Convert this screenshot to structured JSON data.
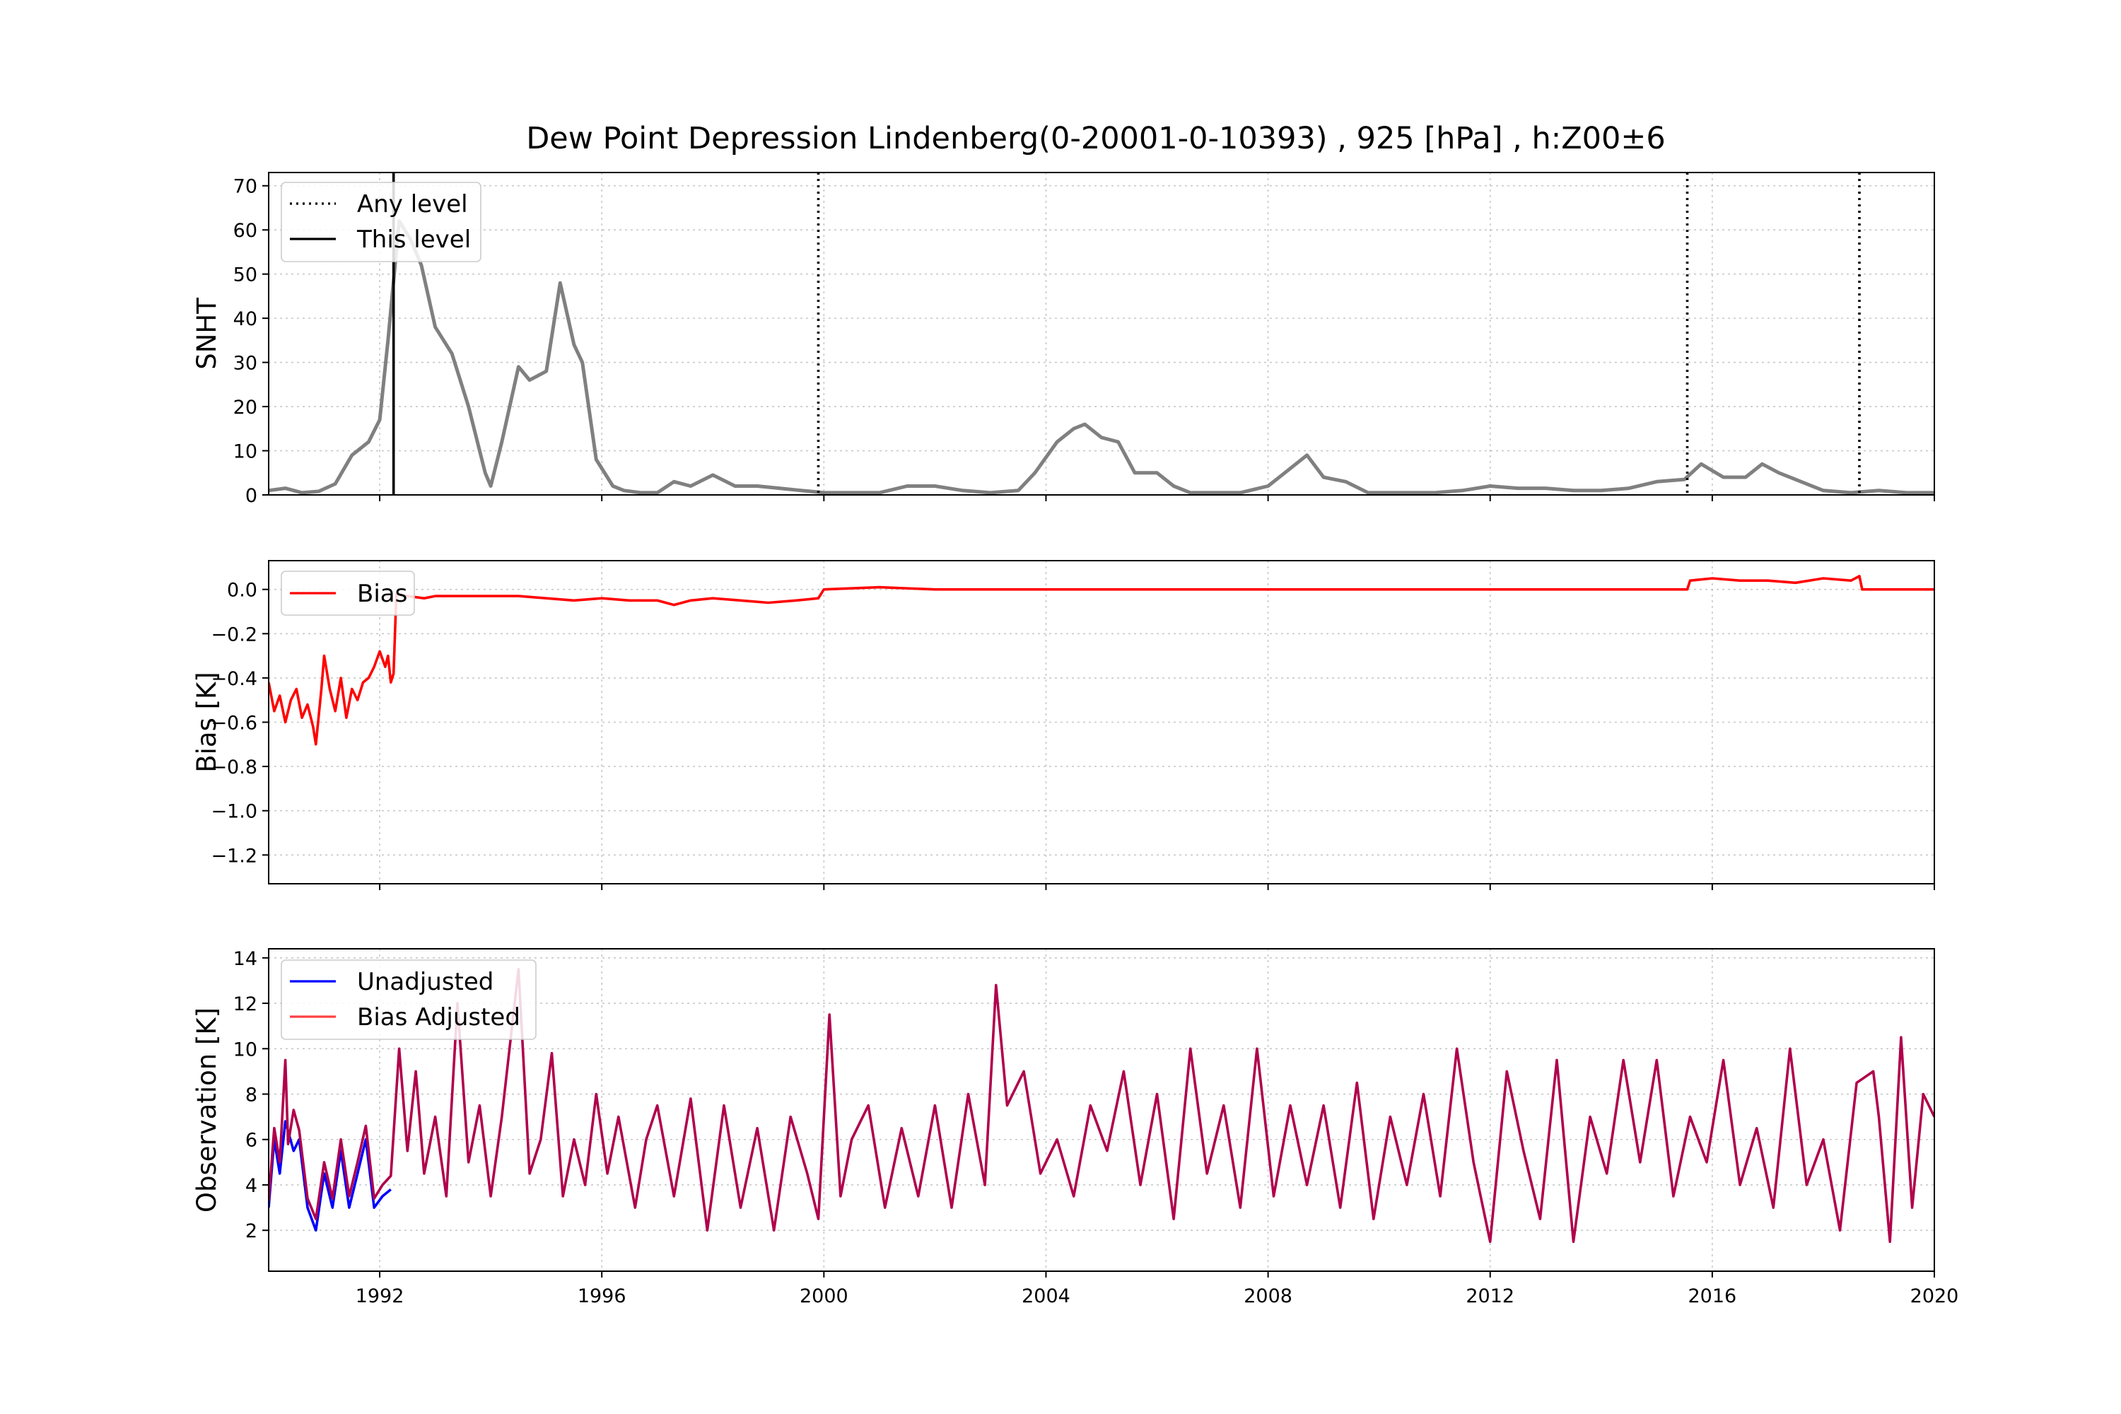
{
  "chart_data": [
    {
      "panel": "snht",
      "type": "line",
      "title": "Dew Point Depression Lindenberg(0-20001-0-10393) , 925 [hPa] , h:Z00±6",
      "ylabel": "SNHT",
      "xlim": [
        1990.0,
        2020.0
      ],
      "ylim": [
        0,
        73
      ],
      "yticks": [
        0,
        10,
        20,
        30,
        40,
        50,
        60,
        70
      ],
      "grid": true,
      "legend_position": "top-left",
      "legend": [
        "Any level",
        "This level"
      ],
      "series": [
        {
          "color": "#808080",
          "x": [
            1990.0,
            1990.3,
            1990.6,
            1990.9,
            1991.2,
            1991.5,
            1991.8,
            1992.0,
            1992.15,
            1992.35,
            1992.55,
            1992.75,
            1993.0,
            1993.3,
            1993.6,
            1993.9,
            1994.0,
            1994.2,
            1994.5,
            1994.7,
            1995.0,
            1995.25,
            1995.5,
            1995.65,
            1995.9,
            1996.2,
            1996.4,
            1996.7,
            1997.0,
            1997.3,
            1997.6,
            1998.0,
            1998.4,
            1998.8,
            1999.2,
            1999.6,
            2000.0,
            2000.5,
            2001.0,
            2001.5,
            2002.0,
            2002.5,
            2003.0,
            2003.5,
            2003.8,
            2004.2,
            2004.5,
            2004.7,
            2005.0,
            2005.3,
            2005.6,
            2006.0,
            2006.3,
            2006.6,
            2007.0,
            2007.5,
            2008.0,
            2008.3,
            2008.7,
            2009.0,
            2009.4,
            2009.8,
            2010.2,
            2010.6,
            2011.0,
            2011.5,
            2012.0,
            2012.5,
            2013.0,
            2013.5,
            2014.0,
            2014.5,
            2015.0,
            2015.5,
            2015.8,
            2016.2,
            2016.6,
            2016.9,
            2017.2,
            2017.6,
            2018.0,
            2018.5,
            2019.0,
            2019.5,
            2020.0
          ],
          "y": [
            1.0,
            1.5,
            0.5,
            0.8,
            2.5,
            9.0,
            12.0,
            17.0,
            35.0,
            62.0,
            58.0,
            52.0,
            38.0,
            32.0,
            20.0,
            5.0,
            2.0,
            12.0,
            29.0,
            26.0,
            28.0,
            48.0,
            34.0,
            30.0,
            8.0,
            2.0,
            1.0,
            0.5,
            0.5,
            3.0,
            2.0,
            4.5,
            2.0,
            2.0,
            1.5,
            1.0,
            0.5,
            0.5,
            0.5,
            2.0,
            2.0,
            1.0,
            0.5,
            1.0,
            5.0,
            12.0,
            15.0,
            16.0,
            13.0,
            12.0,
            5.0,
            5.0,
            2.0,
            0.5,
            0.5,
            0.5,
            2.0,
            5.0,
            9.0,
            4.0,
            3.0,
            0.5,
            0.5,
            0.5,
            0.5,
            1.0,
            2.0,
            1.5,
            1.5,
            1.0,
            1.0,
            1.5,
            3.0,
            3.5,
            7.0,
            4.0,
            4.0,
            7.0,
            5.0,
            3.0,
            1.0,
            0.5,
            1.0,
            0.5,
            0.5
          ]
        }
      ],
      "vlines_any_level": [
        1999.9,
        2015.55,
        2018.65
      ],
      "vlines_this_level": [
        1992.25
      ]
    },
    {
      "panel": "bias",
      "type": "line",
      "ylabel": "Bias [K]",
      "xlim": [
        1990.0,
        2020.0
      ],
      "ylim": [
        -1.33,
        0.13
      ],
      "yticks": [
        0.0,
        -0.2,
        -0.4,
        -0.6,
        -0.8,
        -1.0,
        -1.2
      ],
      "ytick_labels": [
        "0.0",
        "−0.2",
        "−0.4",
        "−0.6",
        "−0.8",
        "−1.0",
        "−1.2"
      ],
      "grid": true,
      "legend_position": "top-left",
      "series": [
        {
          "name": "Bias",
          "color": "#ff0000",
          "x": [
            1990.0,
            1990.1,
            1990.2,
            1990.3,
            1990.4,
            1990.5,
            1990.6,
            1990.7,
            1990.8,
            1990.85,
            1990.95,
            1991.0,
            1991.1,
            1991.2,
            1991.3,
            1991.4,
            1991.5,
            1991.6,
            1991.7,
            1991.8,
            1991.9,
            1992.0,
            1992.1,
            1992.15,
            1992.2,
            1992.25,
            1992.3,
            1992.5,
            1992.8,
            1993.0,
            1993.5,
            1994.0,
            1994.5,
            1995.0,
            1995.5,
            1996.0,
            1996.5,
            1997.0,
            1997.3,
            1997.6,
            1998.0,
            1998.5,
            1999.0,
            1999.5,
            1999.9,
            2000.0,
            2001.0,
            2002.0,
            2003.0,
            2004.0,
            2005.0,
            2006.0,
            2007.0,
            2008.0,
            2009.0,
            2010.0,
            2011.0,
            2012.0,
            2013.0,
            2014.0,
            2015.0,
            2015.55,
            2015.6,
            2016.0,
            2016.5,
            2017.0,
            2017.5,
            2018.0,
            2018.5,
            2018.65,
            2018.7,
            2019.0,
            2019.5,
            2020.0
          ],
          "y": [
            -0.42,
            -0.55,
            -0.48,
            -0.6,
            -0.5,
            -0.45,
            -0.58,
            -0.52,
            -0.62,
            -0.7,
            -0.45,
            -0.3,
            -0.45,
            -0.55,
            -0.4,
            -0.58,
            -0.45,
            -0.5,
            -0.42,
            -0.4,
            -0.35,
            -0.28,
            -0.35,
            -0.3,
            -0.42,
            -0.38,
            -0.02,
            -0.03,
            -0.04,
            -0.03,
            -0.03,
            -0.03,
            -0.03,
            -0.04,
            -0.05,
            -0.04,
            -0.05,
            -0.05,
            -0.07,
            -0.05,
            -0.04,
            -0.05,
            -0.06,
            -0.05,
            -0.04,
            0.0,
            0.01,
            0.0,
            0.0,
            0.0,
            0.0,
            0.0,
            0.0,
            0.0,
            0.0,
            0.0,
            0.0,
            0.0,
            0.0,
            0.0,
            0.0,
            0.0,
            0.04,
            0.05,
            0.04,
            0.04,
            0.03,
            0.05,
            0.04,
            0.06,
            0.0,
            0.0,
            0.0,
            0.0
          ]
        }
      ]
    },
    {
      "panel": "observation",
      "type": "line",
      "ylabel": "Observation [K]",
      "xlim": [
        1990.0,
        2020.0
      ],
      "ylim": [
        0.2,
        14.4
      ],
      "yticks": [
        2,
        4,
        6,
        8,
        10,
        12,
        14
      ],
      "xticks": [
        1992,
        1996,
        2000,
        2004,
        2008,
        2012,
        2016,
        2020
      ],
      "grid": true,
      "legend_position": "top-left",
      "series": [
        {
          "name": "Unadjusted",
          "color": "#0000ff",
          "x": [
            1990.0,
            1990.1,
            1990.2,
            1990.3,
            1990.45,
            1990.55,
            1990.7,
            1990.85,
            1991.0,
            1991.15,
            1991.3,
            1991.45,
            1991.6,
            1991.75,
            1991.9,
            1992.05,
            1992.2
          ],
          "y": [
            3.0,
            6.0,
            4.5,
            6.8,
            5.5,
            6.0,
            3.0,
            2.0,
            4.5,
            3.0,
            5.5,
            3.0,
            4.5,
            6.0,
            3.0,
            3.5,
            3.8
          ]
        },
        {
          "name": "Bias Adjusted",
          "color": "#b0004c",
          "x": [
            1990.0,
            1990.1,
            1990.2,
            1990.3,
            1990.35,
            1990.45,
            1990.55,
            1990.7,
            1990.85,
            1991.0,
            1991.15,
            1991.3,
            1991.45,
            1991.6,
            1991.75,
            1991.9,
            1992.05,
            1992.2,
            1992.35,
            1992.5,
            1992.65,
            1992.8,
            1993.0,
            1993.2,
            1993.4,
            1993.6,
            1993.8,
            1994.0,
            1994.2,
            1994.5,
            1994.7,
            1994.9,
            1995.1,
            1995.3,
            1995.5,
            1995.7,
            1995.9,
            1996.1,
            1996.3,
            1996.6,
            1996.8,
            1997.0,
            1997.3,
            1997.6,
            1997.9,
            1998.2,
            1998.5,
            1998.8,
            1999.1,
            1999.4,
            1999.7,
            1999.9,
            2000.1,
            2000.3,
            2000.5,
            2000.8,
            2001.1,
            2001.4,
            2001.7,
            2002.0,
            2002.3,
            2002.6,
            2002.9,
            2003.1,
            2003.3,
            2003.6,
            2003.9,
            2004.2,
            2004.5,
            2004.8,
            2005.1,
            2005.4,
            2005.7,
            2006.0,
            2006.3,
            2006.6,
            2006.9,
            2007.2,
            2007.5,
            2007.8,
            2008.1,
            2008.4,
            2008.7,
            2009.0,
            2009.3,
            2009.6,
            2009.9,
            2010.2,
            2010.5,
            2010.8,
            2011.1,
            2011.4,
            2011.7,
            2012.0,
            2012.3,
            2012.6,
            2012.9,
            2013.2,
            2013.5,
            2013.8,
            2014.1,
            2014.4,
            2014.7,
            2015.0,
            2015.3,
            2015.6,
            2015.9,
            2016.2,
            2016.5,
            2016.8,
            2017.1,
            2017.4,
            2017.7,
            2018.0,
            2018.3,
            2018.6,
            2018.9,
            2019.0,
            2019.2,
            2019.4,
            2019.6,
            2019.8,
            2020.0
          ],
          "y": [
            3.3,
            6.5,
            5.0,
            9.5,
            5.8,
            7.3,
            6.4,
            3.4,
            2.5,
            5.0,
            3.4,
            6.0,
            3.5,
            5.0,
            6.6,
            3.4,
            4.0,
            4.4,
            10.0,
            5.5,
            9.0,
            4.5,
            7.0,
            3.5,
            12.0,
            5.0,
            7.5,
            3.5,
            7.0,
            13.5,
            4.5,
            6.0,
            9.8,
            3.5,
            6.0,
            4.0,
            8.0,
            4.5,
            7.0,
            3.0,
            6.0,
            7.5,
            3.5,
            7.8,
            2.0,
            7.5,
            3.0,
            6.5,
            2.0,
            7.0,
            4.5,
            2.5,
            11.5,
            3.5,
            6.0,
            7.5,
            3.0,
            6.5,
            3.5,
            7.5,
            3.0,
            8.0,
            4.0,
            12.8,
            7.5,
            9.0,
            4.5,
            6.0,
            3.5,
            7.5,
            5.5,
            9.0,
            4.0,
            8.0,
            2.5,
            10.0,
            4.5,
            7.5,
            3.0,
            10.0,
            3.5,
            7.5,
            4.0,
            7.5,
            3.0,
            8.5,
            2.5,
            7.0,
            4.0,
            8.0,
            3.5,
            10.0,
            5.0,
            1.5,
            9.0,
            5.5,
            2.5,
            9.5,
            1.5,
            7.0,
            4.5,
            9.5,
            5.0,
            9.5,
            3.5,
            7.0,
            5.0,
            9.5,
            4.0,
            6.5,
            3.0,
            10.0,
            4.0,
            6.0,
            2.0,
            8.5,
            9.0,
            7.0,
            1.5,
            10.5,
            3.0,
            8.0,
            7.0
          ]
        }
      ]
    }
  ],
  "legend": {
    "any_level": "Any level",
    "this_level": "This level",
    "bias": "Bias",
    "unadjusted": "Unadjusted",
    "bias_adjusted": "Bias Adjusted"
  }
}
